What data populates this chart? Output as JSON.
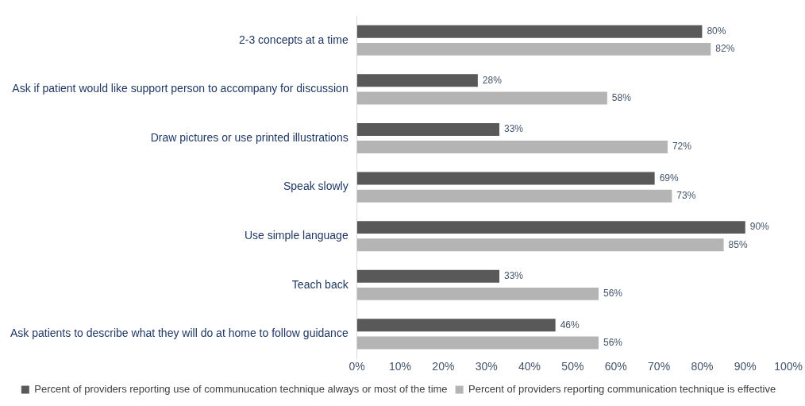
{
  "chart_data": {
    "type": "bar",
    "orientation": "horizontal",
    "categories": [
      "2-3 concepts at a time",
      "Ask if patient would like support person to accompany for discussion",
      "Draw pictures or use printed illustrations",
      "Speak slowly",
      "Use simple language",
      "Teach back",
      "Ask patients to describe what they will do at home to follow guidance"
    ],
    "series": [
      {
        "name": "Percent of providers reporting use of communucation technique always or most of the time",
        "color": "#595959",
        "values": [
          80,
          28,
          33,
          69,
          90,
          33,
          46
        ],
        "value_labels": [
          "80%",
          "28%",
          "33%",
          "69%",
          "90%",
          "33%",
          "46%"
        ]
      },
      {
        "name": "Percent of providers reporting communication technique is effective",
        "color": "#b4b4b4",
        "values": [
          82,
          58,
          72,
          73,
          85,
          56,
          56
        ],
        "value_labels": [
          "82%",
          "58%",
          "72%",
          "73%",
          "85%",
          "56%",
          "56%"
        ]
      }
    ],
    "xlim": [
      0,
      100
    ],
    "xticks": [
      {
        "value": 0,
        "label": "0%"
      },
      {
        "value": 10,
        "label": "10%"
      },
      {
        "value": 20,
        "label": "20%"
      },
      {
        "value": 30,
        "label": "30%"
      },
      {
        "value": 40,
        "label": "40%"
      },
      {
        "value": 50,
        "label": "50%"
      },
      {
        "value": 60,
        "label": "60%"
      },
      {
        "value": 70,
        "label": "70%"
      },
      {
        "value": 80,
        "label": "80%"
      },
      {
        "value": 90,
        "label": "90%"
      },
      {
        "value": 100,
        "label": "100%"
      }
    ],
    "grid": false,
    "legend": "bottom"
  }
}
